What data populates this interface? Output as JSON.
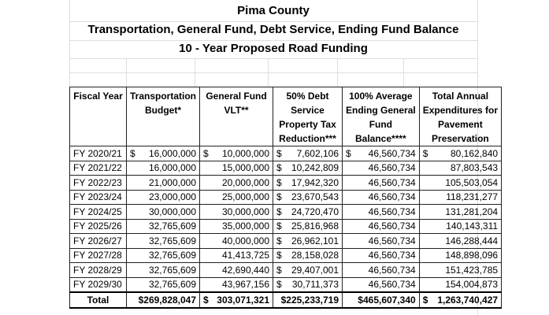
{
  "header": {
    "title": "Pima County",
    "subtitle": "Transportation, General Fund, Debt Service, Ending Fund Balance",
    "caption": "10 - Year Proposed Road Funding"
  },
  "table": {
    "columns": [
      [
        "Fiscal Year"
      ],
      [
        "Transportation",
        "Budget*"
      ],
      [
        "General Fund",
        "VLT**"
      ],
      [
        "50% Debt",
        "Service",
        "Property Tax",
        "Reduction***"
      ],
      [
        "100% Average",
        "Ending General",
        "Fund",
        "Balance****"
      ],
      [
        "Total Annual",
        "Expenditures for",
        "Pavement",
        "Preservation"
      ]
    ],
    "rows": [
      [
        "FY 2020/21",
        {
          "symbol": "$",
          "amount": "16,000,000"
        },
        {
          "symbol": "$",
          "amount": "10,000,000"
        },
        {
          "symbol": "$",
          "amount": "7,602,106"
        },
        {
          "symbol": "$",
          "amount": "46,560,734"
        },
        {
          "symbol": "$",
          "amount": "80,162,840"
        }
      ],
      [
        "FY 2021/22",
        "16,000,000",
        "15,000,000",
        {
          "symbol": "$",
          "amount": "10,242,809"
        },
        "46,560,734",
        "87,803,543"
      ],
      [
        "FY 2022/23",
        "21,000,000",
        "20,000,000",
        {
          "symbol": "$",
          "amount": "17,942,320"
        },
        "46,560,734",
        "105,503,054"
      ],
      [
        "FY 2023/24",
        "23,000,000",
        "25,000,000",
        {
          "symbol": "$",
          "amount": "23,670,543"
        },
        "46,560,734",
        "118,231,277"
      ],
      [
        "FY 2024/25",
        "30,000,000",
        "30,000,000",
        {
          "symbol": "$",
          "amount": "24,720,470"
        },
        "46,560,734",
        "131,281,204"
      ],
      [
        "FY 2025/26",
        "32,765,609",
        "35,000,000",
        {
          "symbol": "$",
          "amount": "25,816,968"
        },
        "46,560,734",
        "140,143,311"
      ],
      [
        "FY 2026/27",
        "32,765,609",
        "40,000,000",
        {
          "symbol": "$",
          "amount": "26,962,101"
        },
        "46,560,734",
        "146,288,444"
      ],
      [
        "FY 2027/28",
        "32,765,609",
        "41,413,725",
        {
          "symbol": "$",
          "amount": "28,158,028"
        },
        "46,560,734",
        "148,898,096"
      ],
      [
        "FY 2028/29",
        "32,765,609",
        "42,690,440",
        {
          "symbol": "$",
          "amount": "29,407,001"
        },
        "46,560,734",
        "151,423,785"
      ],
      [
        "FY 2029/30",
        "32,765,609",
        "43,967,156",
        {
          "symbol": "$",
          "amount": "30,711,373"
        },
        "46,560,734",
        "154,004,873"
      ]
    ],
    "total": [
      "Total",
      "$269,828,047",
      {
        "symbol": "$",
        "amount": "303,071,321"
      },
      "$225,233,719",
      "$465,607,340",
      {
        "symbol": "$",
        "amount": "1,263,740,427"
      }
    ]
  }
}
